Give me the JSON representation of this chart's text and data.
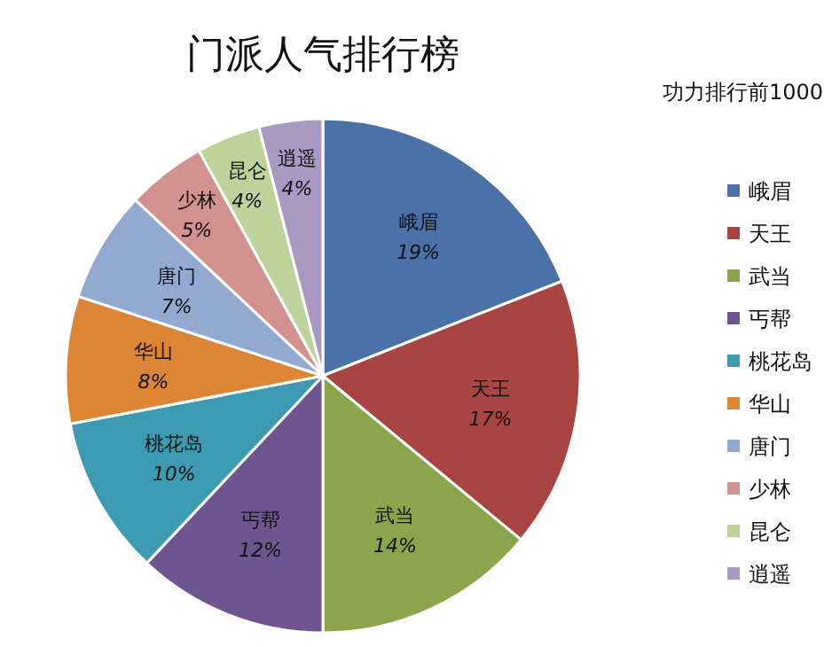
{
  "chart_data": {
    "type": "pie",
    "title": "门派人气排行榜",
    "legend_title": "功力排行前1000",
    "legend": "right",
    "categories": [
      "峨眉",
      "天王",
      "武当",
      "丐帮",
      "桃花岛",
      "华山",
      "唐门",
      "少林",
      "昆仑",
      "逍遥"
    ],
    "values": [
      19,
      17,
      14,
      12,
      10,
      8,
      7,
      5,
      4,
      4
    ],
    "value_labels": [
      "19%",
      "17%",
      "14%",
      "12%",
      "10%",
      "8%",
      "7%",
      "5%",
      "4%",
      "4%"
    ],
    "colors": [
      "#4a72a8",
      "#a84543",
      "#8aa54b",
      "#6e5590",
      "#3c9bb0",
      "#dc8535",
      "#93a9d0",
      "#d29290",
      "#bdd39a",
      "#a99ac3"
    ]
  }
}
